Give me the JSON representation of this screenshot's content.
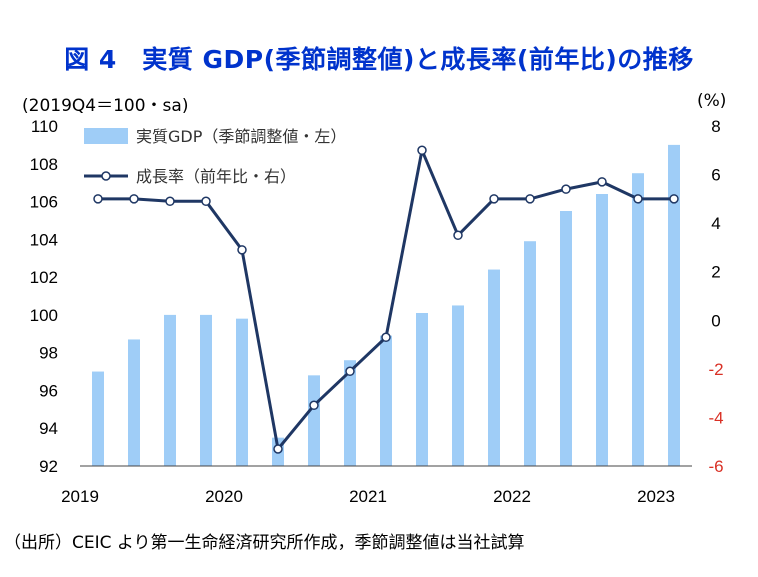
{
  "title": "図 4　実質 GDP(季節調整値)と成長率(前年比)の推移",
  "units": {
    "left": "(2019Q4＝100・sa)",
    "right": "(%)"
  },
  "source": "（出所）CEIC より第一生命経済研究所作成，季節調整値は当社試算",
  "colors": {
    "bar": "#9fcdf7",
    "line": "#1f3764",
    "negative_tick": "#d93025",
    "axis": "#000000"
  },
  "chart_data": {
    "type": "bar+line",
    "periods": [
      "2019Q1",
      "2019Q2",
      "2019Q3",
      "2019Q4",
      "2020Q1",
      "2020Q2",
      "2020Q3",
      "2020Q4",
      "2021Q1",
      "2021Q2",
      "2021Q3",
      "2021Q4",
      "2022Q1",
      "2022Q2",
      "2022Q3",
      "2022Q4",
      "2023Q1"
    ],
    "x_tick_labels": [
      "2019",
      "2020",
      "2021",
      "2022",
      "2023"
    ],
    "series": [
      {
        "name": "実質GDP（季節調整値・左）",
        "type": "bar",
        "axis": "left",
        "values": [
          97.0,
          98.7,
          100.0,
          100.0,
          99.8,
          93.5,
          96.8,
          97.6,
          98.9,
          100.1,
          100.5,
          102.4,
          103.9,
          105.5,
          106.4,
          107.5,
          109.0
        ]
      },
      {
        "name": "成長率（前年比・右）",
        "type": "line",
        "axis": "right",
        "values": [
          5.0,
          5.0,
          4.9,
          4.9,
          2.9,
          -5.3,
          -3.5,
          -2.1,
          -0.7,
          7.0,
          3.5,
          5.0,
          5.0,
          5.4,
          5.7,
          5.0,
          5.0
        ]
      }
    ],
    "left_axis": {
      "ylim": [
        92,
        110
      ],
      "ticks": [
        "92",
        "94",
        "96",
        "98",
        "100",
        "102",
        "104",
        "106",
        "108",
        "110"
      ]
    },
    "right_axis": {
      "ylim": [
        -6,
        8
      ],
      "ticks": [
        "-6",
        "-4",
        "-2",
        "0",
        "2",
        "4",
        "6",
        "8"
      ]
    },
    "legend": {
      "placement": "top-left"
    },
    "grid": false
  }
}
